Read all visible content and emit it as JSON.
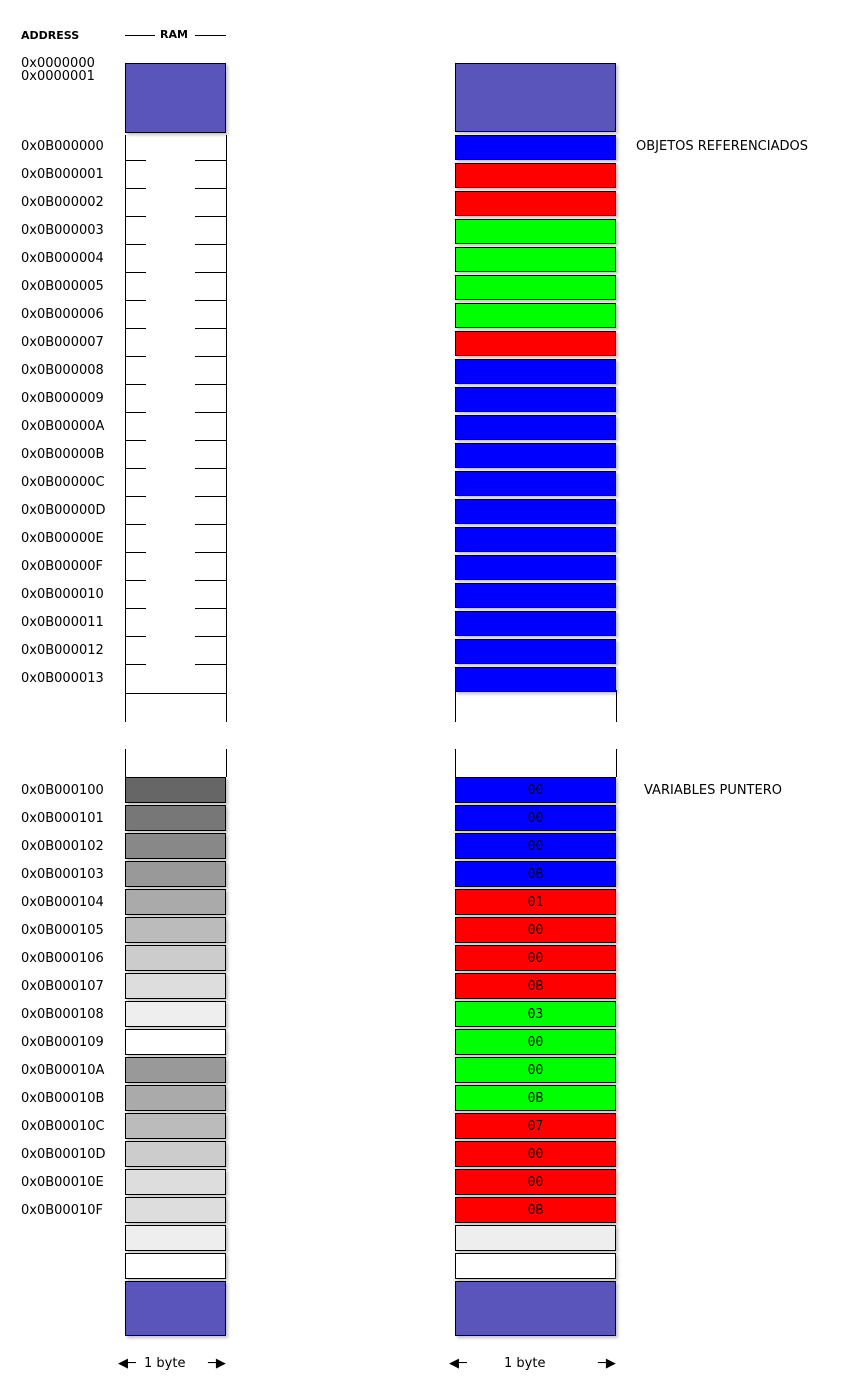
{
  "header": {
    "address_label": "ADDRESS",
    "ram_label": "RAM"
  },
  "colors": {
    "block": "#5a55bb",
    "blue": "#0000ff",
    "red": "#ff0000",
    "green": "#00ff00",
    "light_gray": "#eeeeee",
    "white": "#ffffff"
  },
  "top_block": {
    "addresses": [
      "0x0000000",
      "0x0000001"
    ]
  },
  "objects": {
    "label": "OBJETOS REFERENCIADOS",
    "rows": [
      {
        "address": "0x0B000000",
        "color": "blue"
      },
      {
        "address": "0x0B000001",
        "color": "red"
      },
      {
        "address": "0x0B000002",
        "color": "red"
      },
      {
        "address": "0x0B000003",
        "color": "green"
      },
      {
        "address": "0x0B000004",
        "color": "green"
      },
      {
        "address": "0x0B000005",
        "color": "green"
      },
      {
        "address": "0x0B000006",
        "color": "green"
      },
      {
        "address": "0x0B000007",
        "color": "red"
      },
      {
        "address": "0x0B000008",
        "color": "blue"
      },
      {
        "address": "0x0B000009",
        "color": "blue"
      },
      {
        "address": "0x0B00000A",
        "color": "blue"
      },
      {
        "address": "0x0B00000B",
        "color": "blue"
      },
      {
        "address": "0x0B00000C",
        "color": "blue"
      },
      {
        "address": "0x0B00000D",
        "color": "blue"
      },
      {
        "address": "0x0B00000E",
        "color": "blue"
      },
      {
        "address": "0x0B00000F",
        "color": "blue"
      },
      {
        "address": "0x0B000010",
        "color": "blue"
      },
      {
        "address": "0x0B000011",
        "color": "blue"
      },
      {
        "address": "0x0B000012",
        "color": "blue"
      },
      {
        "address": "0x0B000013",
        "color": "blue"
      }
    ]
  },
  "pointers": {
    "label": "VARIABLES PUNTERO",
    "rows": [
      {
        "address": "0x0B000100",
        "value": "00",
        "color": "blue",
        "ram_gray": "#666666"
      },
      {
        "address": "0x0B000101",
        "value": "00",
        "color": "blue",
        "ram_gray": "#777777"
      },
      {
        "address": "0x0B000102",
        "value": "00",
        "color": "blue",
        "ram_gray": "#888888"
      },
      {
        "address": "0x0B000103",
        "value": "0B",
        "color": "blue",
        "ram_gray": "#999999"
      },
      {
        "address": "0x0B000104",
        "value": "01",
        "color": "red",
        "ram_gray": "#aaaaaa"
      },
      {
        "address": "0x0B000105",
        "value": "00",
        "color": "red",
        "ram_gray": "#bbbbbb"
      },
      {
        "address": "0x0B000106",
        "value": "00",
        "color": "red",
        "ram_gray": "#cccccc"
      },
      {
        "address": "0x0B000107",
        "value": "0B",
        "color": "red",
        "ram_gray": "#dddddd"
      },
      {
        "address": "0x0B000108",
        "value": "03",
        "color": "green",
        "ram_gray": "#eeeeee"
      },
      {
        "address": "0x0B000109",
        "value": "00",
        "color": "green",
        "ram_gray": "#ffffff"
      },
      {
        "address": "0x0B00010A",
        "value": "00",
        "color": "green",
        "ram_gray": "#999999"
      },
      {
        "address": "0x0B00010B",
        "value": "0B",
        "color": "green",
        "ram_gray": "#aaaaaa"
      },
      {
        "address": "0x0B00010C",
        "value": "07",
        "color": "red",
        "ram_gray": "#bbbbbb"
      },
      {
        "address": "0x0B00010D",
        "value": "00",
        "color": "red",
        "ram_gray": "#cccccc"
      },
      {
        "address": "0x0B00010E",
        "value": "00",
        "color": "red",
        "ram_gray": "#dddddd"
      },
      {
        "address": "0x0B00010F",
        "value": "0B",
        "color": "red",
        "ram_gray": "#dddddd"
      }
    ]
  },
  "trailing_cells": [
    {
      "ram_gray": "#eeeeee",
      "right_color": "light_gray"
    },
    {
      "ram_gray": "#ffffff",
      "right_color": "white"
    }
  ],
  "footer": {
    "left_label": "1 byte",
    "right_label": "1 byte"
  }
}
